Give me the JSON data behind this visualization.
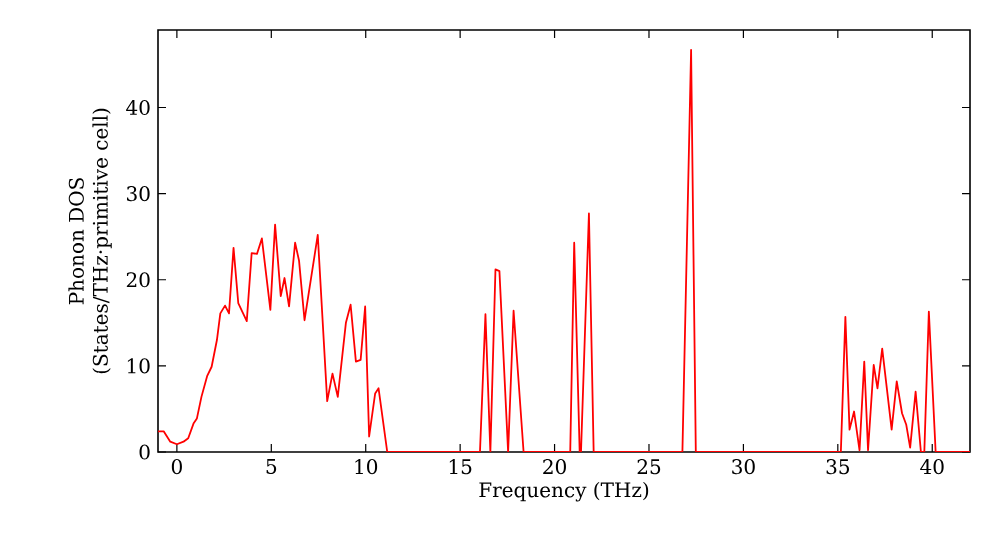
{
  "chart_data": {
    "type": "line",
    "xlabel": "Frequency (THz)",
    "ylabel": "Phonon DOS\n(States/THz·primitive cell)",
    "xlim": [
      -1,
      42
    ],
    "ylim": [
      0,
      49
    ],
    "xticks": [
      0,
      5,
      10,
      15,
      20,
      25,
      30,
      35,
      40
    ],
    "yticks": [
      0,
      10,
      20,
      30,
      40
    ],
    "grid": false,
    "x": [
      -1,
      -0.7,
      -0.35,
      0,
      0.35,
      0.6,
      0.88,
      1.06,
      1.3,
      1.6,
      1.84,
      2.12,
      2.3,
      2.55,
      2.76,
      3.0,
      3.25,
      3.7,
      3.96,
      4.24,
      4.5,
      4.95,
      5.2,
      5.5,
      5.7,
      5.94,
      6.26,
      6.47,
      6.76,
      7.46,
      7.96,
      8.24,
      8.52,
      8.95,
      9.2,
      9.48,
      9.73,
      9.97,
      10.18,
      10.5,
      10.68,
      11.14,
      16.05,
      16.34,
      16.6,
      16.87,
      17.08,
      17.54,
      17.83,
      18.36,
      20.83,
      21.04,
      21.33,
      21.4,
      21.82,
      22.07,
      26.77,
      27.23,
      27.48,
      35.16,
      35.4,
      35.62,
      35.86,
      36.15,
      36.4,
      36.6,
      36.9,
      37.1,
      37.35,
      37.85,
      38.12,
      38.4,
      38.62,
      38.83,
      39.12,
      39.4,
      39.58,
      39.82,
      40.18,
      42
    ],
    "series": [
      {
        "color": "#ff0000",
        "values": [
          2.4,
          2.4,
          1.2,
          0.9,
          1.2,
          1.6,
          3.3,
          3.9,
          6.4,
          8.8,
          9.9,
          13.0,
          16.1,
          17.0,
          16.1,
          23.7,
          17.3,
          15.2,
          23.1,
          23.0,
          24.8,
          16.5,
          26.4,
          18.1,
          20.2,
          16.9,
          24.3,
          22.2,
          15.3,
          25.2,
          5.9,
          9.1,
          6.4,
          15.0,
          17.1,
          10.5,
          10.7,
          16.9,
          1.8,
          6.8,
          7.4,
          0,
          0,
          16.0,
          0,
          21.2,
          21.0,
          0,
          16.4,
          0,
          0,
          24.3,
          0,
          0,
          27.7,
          0,
          0,
          46.7,
          0,
          0,
          15.7,
          2.6,
          4.7,
          0.2,
          10.5,
          0.2,
          10.1,
          7.4,
          12.0,
          2.6,
          8.2,
          4.5,
          3.2,
          0.5,
          7.0,
          0,
          0,
          16.3,
          0,
          0
        ]
      }
    ]
  }
}
